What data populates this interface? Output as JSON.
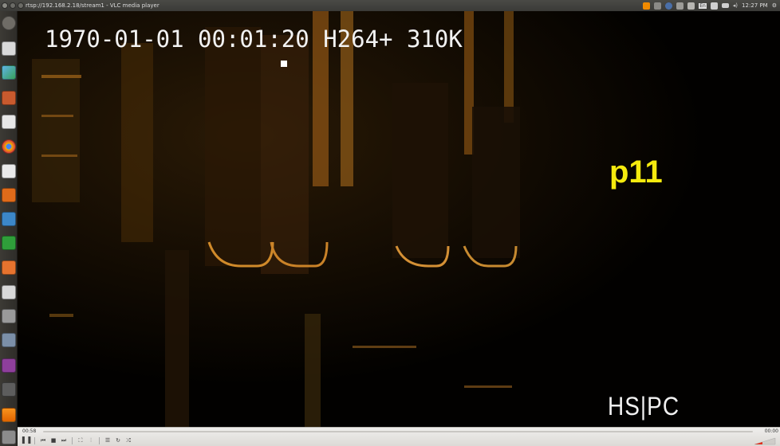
{
  "window": {
    "title": "rtsp://192.168.2.18/stream1 - VLC media player"
  },
  "tray": {
    "clock": "12:27 PM",
    "keyboard": "En"
  },
  "video": {
    "osd_timestamp": "1970-01-01  00:01:20  H264+  310K",
    "osd_label": "p11",
    "osd_brand": "HS|PC"
  },
  "player": {
    "elapsed": "00:58",
    "remaining": "00:00"
  }
}
